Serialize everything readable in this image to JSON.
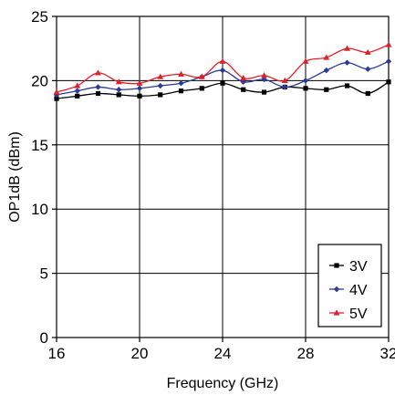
{
  "chart_data": {
    "type": "line",
    "title": "",
    "xlabel": "Frequency (GHz)",
    "ylabel": "OP1dB (dBm)",
    "xlim": [
      16,
      32
    ],
    "ylim": [
      0,
      25
    ],
    "xticks": [
      16,
      20,
      24,
      28,
      32
    ],
    "yticks": [
      0,
      5,
      10,
      15,
      20,
      25
    ],
    "grid": true,
    "legend_position": "bottom-right",
    "x": [
      16,
      17,
      18,
      19,
      20,
      21,
      22,
      23,
      24,
      25,
      26,
      27,
      28,
      29,
      30,
      31,
      32
    ],
    "series": [
      {
        "name": "3V",
        "color": "#000000",
        "marker": "square",
        "values": [
          18.6,
          18.8,
          19.0,
          18.9,
          18.8,
          18.9,
          19.2,
          19.4,
          19.8,
          19.3,
          19.1,
          19.5,
          19.4,
          19.3,
          19.6,
          19.0,
          19.9
        ]
      },
      {
        "name": "4V",
        "color": "#2b3a9a",
        "marker": "diamond",
        "values": [
          18.9,
          19.2,
          19.5,
          19.3,
          19.4,
          19.6,
          19.8,
          20.3,
          20.8,
          19.9,
          20.1,
          19.5,
          20.0,
          20.8,
          21.4,
          20.9,
          21.5
        ]
      },
      {
        "name": "5V",
        "color": "#e2202a",
        "marker": "triangle",
        "values": [
          19.1,
          19.6,
          20.6,
          19.9,
          19.8,
          20.3,
          20.5,
          20.3,
          21.5,
          20.2,
          20.4,
          20.0,
          21.5,
          21.8,
          22.5,
          22.2,
          22.8
        ]
      }
    ]
  }
}
